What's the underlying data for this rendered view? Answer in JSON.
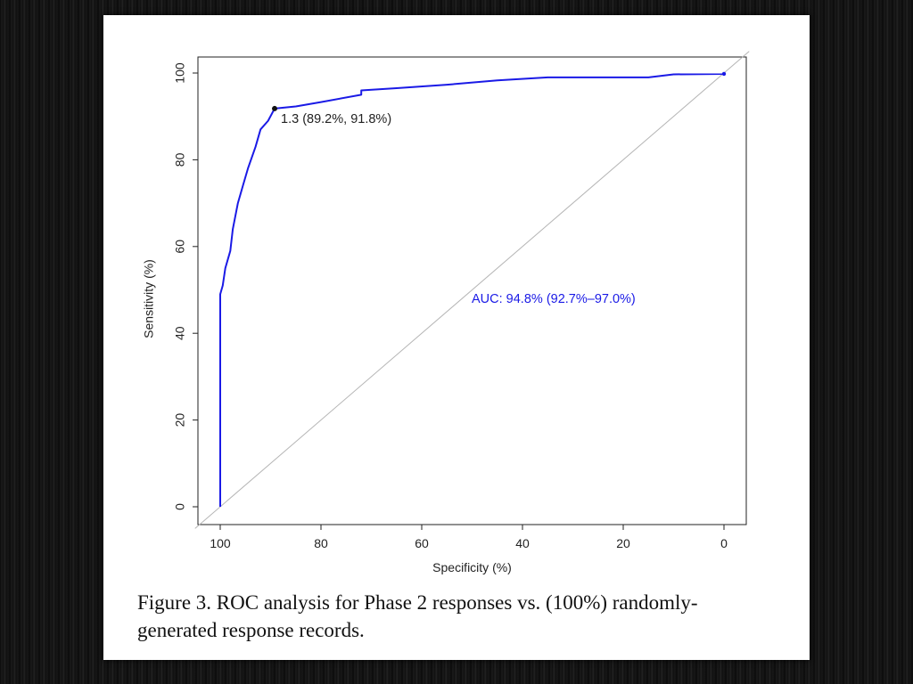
{
  "slide": {
    "caption_line1": "Figure 3. ROC analysis for Phase 2 responses vs. (100%) randomly-",
    "caption_line2": "generated response records."
  },
  "chart_data": {
    "type": "line",
    "xlabel": "Specificity (%)",
    "ylabel": "Sensitivity (%)",
    "xlim": [
      100,
      0
    ],
    "ylim": [
      0,
      100
    ],
    "x_reversed": true,
    "xticks": [
      100,
      80,
      60,
      40,
      20,
      0
    ],
    "yticks": [
      0,
      20,
      40,
      60,
      80,
      100
    ],
    "grid": false,
    "diagonal_reference_line": true,
    "series": [
      {
        "color": "#1a1ae6",
        "points": [
          [
            100,
            0
          ],
          [
            100,
            49
          ],
          [
            99.5,
            51
          ],
          [
            99,
            55
          ],
          [
            98,
            59
          ],
          [
            97.5,
            64
          ],
          [
            96.5,
            70
          ],
          [
            95.5,
            74
          ],
          [
            94.5,
            78
          ],
          [
            93,
            83
          ],
          [
            92,
            87
          ],
          [
            90.5,
            89
          ],
          [
            89.2,
            91.8
          ],
          [
            85,
            92.3
          ],
          [
            80,
            93.3
          ],
          [
            72,
            95
          ],
          [
            72,
            96
          ],
          [
            65,
            96.5
          ],
          [
            55,
            97.3
          ],
          [
            45,
            98.3
          ],
          [
            35,
            99
          ],
          [
            15,
            99
          ],
          [
            10,
            99.7
          ],
          [
            0,
            99.8
          ],
          [
            0,
            100
          ]
        ]
      }
    ],
    "annotations": [
      {
        "text": "1.3 (89.2%, 91.8%)",
        "x": 89.2,
        "y": 91.8,
        "color": "#222222"
      },
      {
        "text": "AUC: 94.8% (92.7%–97.0%)",
        "x": 50,
        "y": 48,
        "color": "#1a1ae6"
      }
    ]
  }
}
